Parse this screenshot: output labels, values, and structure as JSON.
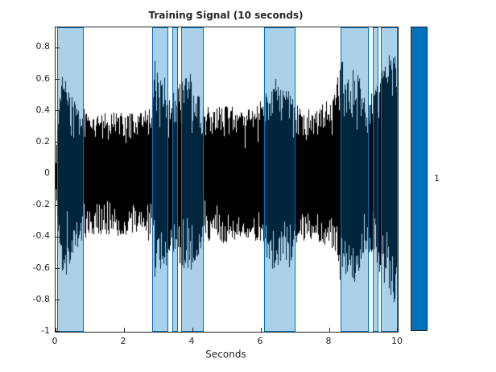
{
  "figure": {
    "title": "Training Signal (10 seconds)",
    "xlabel": "Seconds",
    "colorbar_label": "1"
  },
  "chart_data": {
    "type": "line",
    "title": "Training Signal (10 seconds)",
    "xlabel": "Seconds",
    "ylabel": "",
    "xlim": [
      0,
      10
    ],
    "ylim": [
      -1,
      0.93
    ],
    "x_ticks": [
      0,
      2,
      4,
      6,
      8,
      10
    ],
    "y_ticks": [
      -1,
      -0.8,
      -0.6,
      -0.4,
      -0.2,
      0,
      0.2,
      0.4,
      0.6,
      0.8
    ],
    "grid": false,
    "legend": "none",
    "series_color": "#000000",
    "accent_color": "#0072BD",
    "region_fill_alpha": 0.33,
    "signal_envelope": {
      "t": [
        0,
        0.05,
        0.12,
        0.3,
        0.5,
        0.8,
        1.2,
        1.8,
        2.4,
        2.8,
        2.9,
        3.05,
        3.2,
        3.35,
        3.5,
        3.7,
        3.9,
        4.1,
        4.3,
        4.7,
        5.0,
        5.4,
        5.8,
        6.1,
        6.35,
        6.6,
        6.85,
        7.0,
        7.4,
        7.8,
        8.1,
        8.35,
        8.55,
        8.75,
        8.95,
        9.1,
        9.3,
        9.5,
        9.7,
        9.9,
        10
      ],
      "amp": [
        0.1,
        0.35,
        0.6,
        0.65,
        0.5,
        0.42,
        0.38,
        0.4,
        0.38,
        0.45,
        0.75,
        0.62,
        0.65,
        0.5,
        0.55,
        0.6,
        0.65,
        0.55,
        0.45,
        0.42,
        0.45,
        0.4,
        0.42,
        0.5,
        0.63,
        0.55,
        0.6,
        0.45,
        0.42,
        0.45,
        0.48,
        0.73,
        0.6,
        0.72,
        0.55,
        0.5,
        0.55,
        0.65,
        0.73,
        0.85,
        0.6
      ]
    },
    "mask_regions": [
      [
        0.05,
        0.82
      ],
      [
        2.82,
        3.3
      ],
      [
        3.42,
        3.58
      ],
      [
        3.66,
        4.33
      ],
      [
        6.1,
        7.0
      ],
      [
        8.33,
        9.15
      ],
      [
        9.27,
        9.43
      ],
      [
        9.5,
        10.0
      ]
    ],
    "colorbar": {
      "label": "1",
      "color": "#0072BD"
    }
  }
}
